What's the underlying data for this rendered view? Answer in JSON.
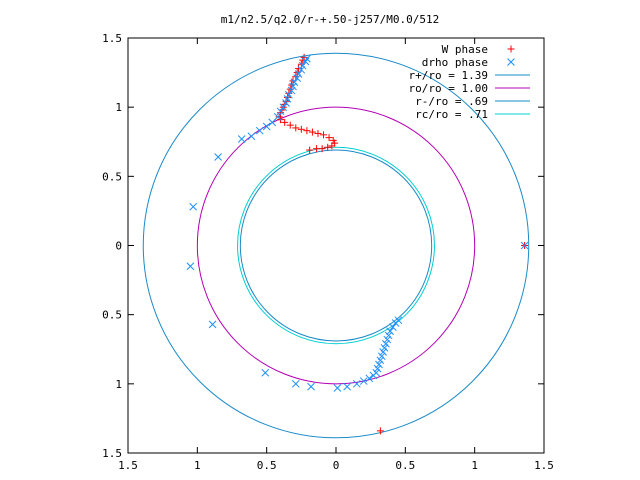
{
  "chart_data": {
    "type": "scatter",
    "title": "m1/n2.5/q2.0/r-+.50-j257/M0.0/512",
    "xlabel": "",
    "ylabel": "",
    "xlim": [
      -1.5,
      1.5
    ],
    "ylim": [
      -1.5,
      1.5
    ],
    "x_ticks": [
      -1.5,
      -1,
      -0.5,
      0,
      0.5,
      1,
      1.5
    ],
    "x_tick_labels": [
      "1.5",
      "1",
      "0.5",
      "0",
      "0.5",
      "1",
      "1.5"
    ],
    "y_ticks": [
      1.5,
      1,
      0.5,
      0,
      -0.5,
      -1,
      -1.5
    ],
    "y_tick_labels": [
      "1.5",
      "1",
      "0.5",
      "0",
      "0.5",
      "1",
      "1.5"
    ],
    "grid": false,
    "legend_position": "top-right",
    "series": [
      {
        "name": "W phase",
        "marker": "plus",
        "color": "#ff0000",
        "points": [
          [
            -0.23,
            1.36
          ],
          [
            -0.24,
            1.34
          ],
          [
            -0.25,
            1.31
          ],
          [
            -0.27,
            1.28
          ],
          [
            -0.28,
            1.25
          ],
          [
            -0.29,
            1.22
          ],
          [
            -0.31,
            1.19
          ],
          [
            -0.32,
            1.16
          ],
          [
            -0.33,
            1.13
          ],
          [
            -0.34,
            1.1
          ],
          [
            -0.35,
            1.07
          ],
          [
            -0.36,
            1.04
          ],
          [
            -0.37,
            1.02
          ],
          [
            -0.38,
            1.0
          ],
          [
            -0.39,
            0.98
          ],
          [
            -0.4,
            0.96
          ],
          [
            -0.41,
            0.93
          ],
          [
            -0.4,
            0.91
          ],
          [
            -0.37,
            0.89
          ],
          [
            -0.33,
            0.87
          ],
          [
            -0.29,
            0.85
          ],
          [
            -0.25,
            0.84
          ],
          [
            -0.21,
            0.83
          ],
          [
            -0.17,
            0.82
          ],
          [
            -0.13,
            0.81
          ],
          [
            -0.09,
            0.8
          ],
          [
            -0.05,
            0.78
          ],
          [
            -0.02,
            0.76
          ],
          [
            -0.01,
            0.74
          ],
          [
            -0.03,
            0.72
          ],
          [
            -0.06,
            0.71
          ],
          [
            -0.1,
            0.7
          ],
          [
            -0.14,
            0.7
          ],
          [
            -0.19,
            0.69
          ],
          [
            0.32,
            -1.34
          ],
          [
            1.36,
            0.0
          ]
        ]
      },
      {
        "name": "drho phase",
        "marker": "cross",
        "color": "#1e90ff",
        "points": [
          [
            -0.21,
            1.35
          ],
          [
            -0.22,
            1.33
          ],
          [
            -0.24,
            1.3
          ],
          [
            -0.25,
            1.27
          ],
          [
            -0.27,
            1.24
          ],
          [
            -0.28,
            1.21
          ],
          [
            -0.3,
            1.18
          ],
          [
            -0.31,
            1.15
          ],
          [
            -0.32,
            1.12
          ],
          [
            -0.34,
            1.09
          ],
          [
            -0.35,
            1.06
          ],
          [
            -0.36,
            1.03
          ],
          [
            -0.38,
            1.0
          ],
          [
            -0.4,
            0.97
          ],
          [
            -0.42,
            0.93
          ],
          [
            -0.46,
            0.89
          ],
          [
            -0.5,
            0.86
          ],
          [
            -0.55,
            0.83
          ],
          [
            -0.61,
            0.79
          ],
          [
            -0.68,
            0.77
          ],
          [
            -0.85,
            0.64
          ],
          [
            -1.03,
            0.28
          ],
          [
            -1.05,
            -0.15
          ],
          [
            -0.89,
            -0.57
          ],
          [
            -0.51,
            -0.92
          ],
          [
            -0.29,
            -1.0
          ],
          [
            -0.18,
            -1.02
          ],
          [
            0.01,
            -1.03
          ],
          [
            0.08,
            -1.02
          ],
          [
            0.15,
            -1.0
          ],
          [
            0.2,
            -0.98
          ],
          [
            0.24,
            -0.96
          ],
          [
            0.27,
            -0.94
          ],
          [
            0.29,
            -0.92
          ],
          [
            0.3,
            -0.89
          ],
          [
            0.31,
            -0.86
          ],
          [
            0.32,
            -0.83
          ],
          [
            0.33,
            -0.8
          ],
          [
            0.34,
            -0.77
          ],
          [
            0.35,
            -0.74
          ],
          [
            0.36,
            -0.71
          ],
          [
            0.37,
            -0.68
          ],
          [
            0.38,
            -0.65
          ],
          [
            0.39,
            -0.62
          ],
          [
            0.41,
            -0.59
          ],
          [
            0.43,
            -0.56
          ],
          [
            0.45,
            -0.54
          ],
          [
            1.36,
            0.0
          ]
        ]
      }
    ],
    "circles": [
      {
        "name": "r+/ro = 1.39",
        "radius": 1.39,
        "color": "#1a8ac8"
      },
      {
        "name": "ro/ro = 1.00",
        "radius": 1.0,
        "color": "#b400b4"
      },
      {
        "name": "r-/ro = .69",
        "radius": 0.69,
        "color": "#1a8ac8"
      },
      {
        "name": "rc/ro = .71",
        "radius": 0.71,
        "color": "#00d0d0"
      }
    ]
  }
}
